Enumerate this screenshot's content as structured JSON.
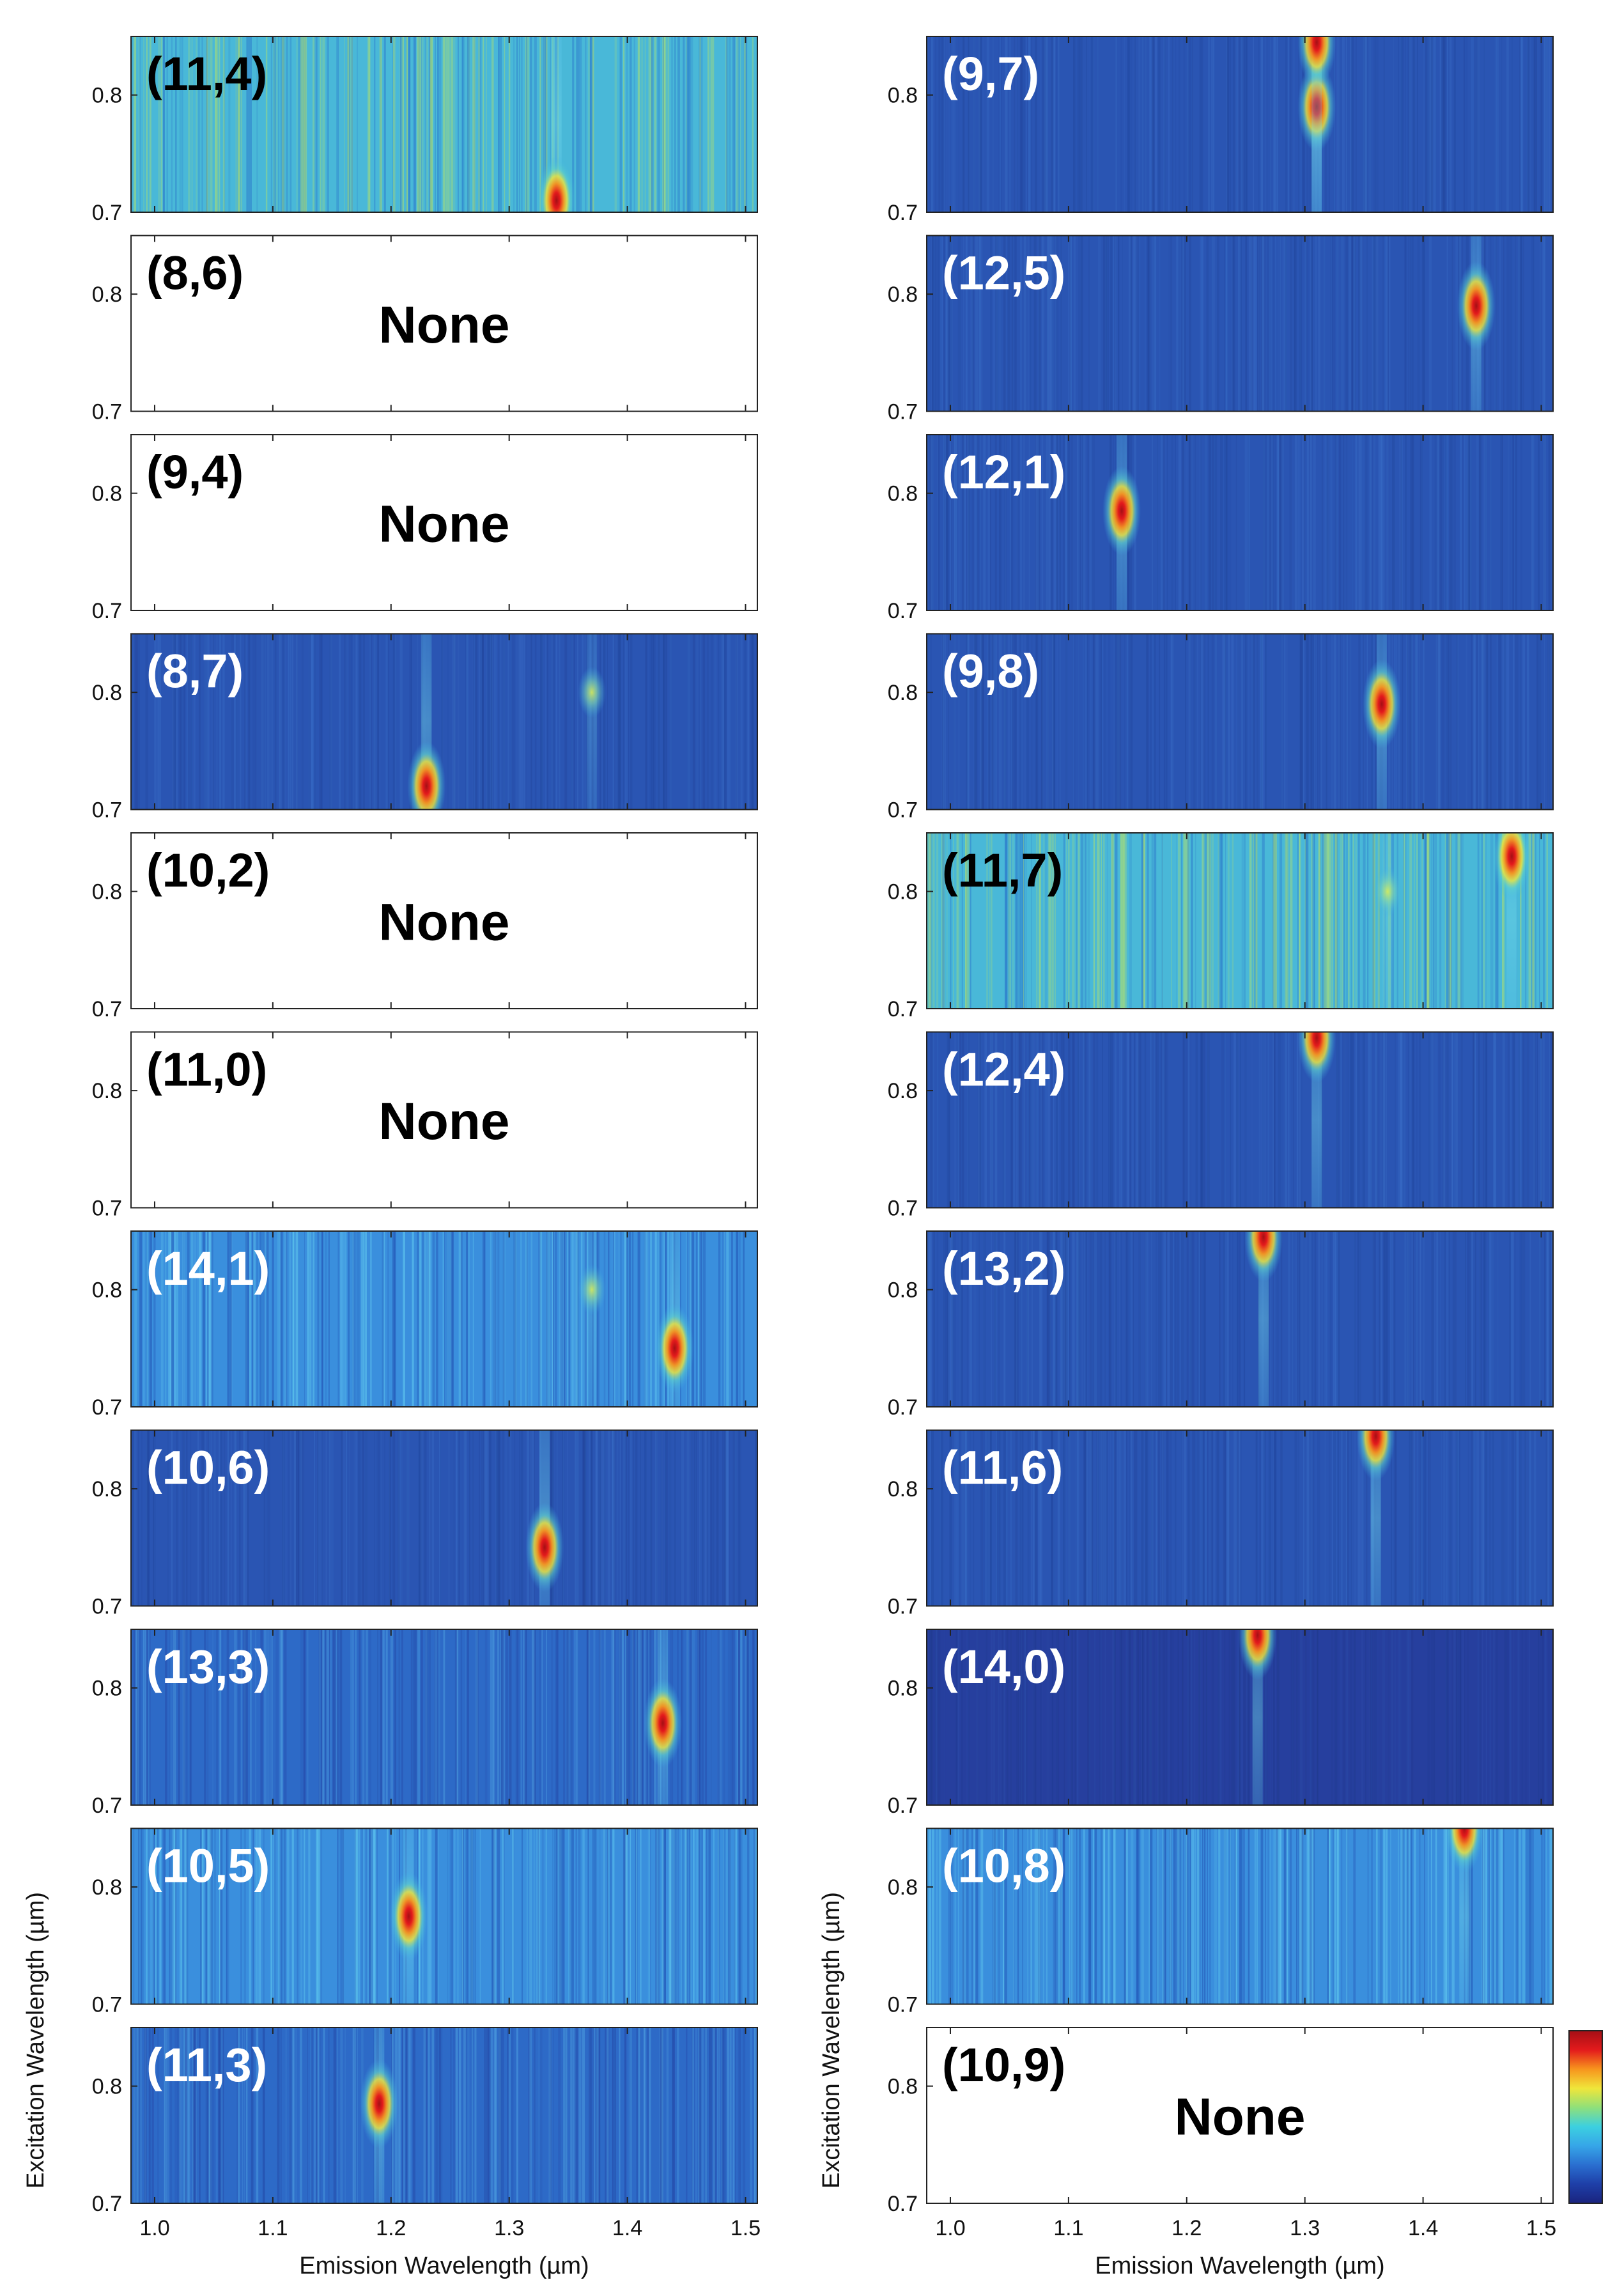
{
  "figure": {
    "x_axis_label": "Emission Wavelength (µm)",
    "y_axis_label": "Excitation Wavelength (µm)",
    "none_text": "None",
    "colorbar_stops": [
      "#1a237e",
      "#1e3fa8",
      "#2a6fd0",
      "#36a6e8",
      "#3cd0e0",
      "#8fe07a",
      "#f0e63a",
      "#f7941d",
      "#e31a1c",
      "#a50f15"
    ]
  },
  "chart_data": {
    "type": "heatmap",
    "x_range": [
      0.98,
      1.51
    ],
    "y_range": [
      0.7,
      0.85
    ],
    "x_ticks": [
      "1.0",
      "1.1",
      "1.2",
      "1.3",
      "1.4",
      "1.5"
    ],
    "x_tick_values": [
      1.0,
      1.1,
      1.2,
      1.3,
      1.4,
      1.5
    ],
    "y_ticks": [
      "0.7",
      "0.8"
    ],
    "y_tick_values": [
      0.7,
      0.8
    ],
    "panels": [
      {
        "label": "(11,4)",
        "column": "left",
        "none": false,
        "bg": "green",
        "text_color": "black",
        "peaks": [
          {
            "em": 1.34,
            "ex": 0.71,
            "strength": 1.0
          }
        ]
      },
      {
        "label": "(9,7)",
        "column": "right",
        "none": false,
        "bg": "dark",
        "text_color": "white",
        "peaks": [
          {
            "em": 1.31,
            "ex": 0.79,
            "strength": 1.0
          },
          {
            "em": 1.31,
            "ex": 0.845,
            "strength": 0.7
          }
        ]
      },
      {
        "label": "(8,6)",
        "column": "left",
        "none": true,
        "text_color": "black",
        "peaks": []
      },
      {
        "label": "(12,5)",
        "column": "right",
        "none": false,
        "bg": "dark",
        "text_color": "white",
        "peaks": [
          {
            "em": 1.445,
            "ex": 0.79,
            "strength": 1.0
          }
        ]
      },
      {
        "label": "(9,4)",
        "column": "left",
        "none": true,
        "text_color": "black",
        "peaks": []
      },
      {
        "label": "(12,1)",
        "column": "right",
        "none": false,
        "bg": "dark",
        "text_color": "white",
        "peaks": [
          {
            "em": 1.145,
            "ex": 0.785,
            "strength": 1.0
          }
        ]
      },
      {
        "label": "(8,7)",
        "column": "left",
        "none": false,
        "bg": "dark",
        "text_color": "white",
        "peaks": [
          {
            "em": 1.23,
            "ex": 0.72,
            "strength": 1.0
          },
          {
            "em": 1.37,
            "ex": 0.8,
            "strength": 0.35
          }
        ]
      },
      {
        "label": "(9,8)",
        "column": "right",
        "none": false,
        "bg": "dark",
        "text_color": "white",
        "peaks": [
          {
            "em": 1.365,
            "ex": 0.79,
            "strength": 1.0
          }
        ]
      },
      {
        "label": "(10,2)",
        "column": "left",
        "none": true,
        "text_color": "black",
        "peaks": []
      },
      {
        "label": "(11,7)",
        "column": "right",
        "none": false,
        "bg": "green",
        "text_color": "black",
        "peaks": [
          {
            "em": 1.475,
            "ex": 0.83,
            "strength": 1.0
          },
          {
            "em": 1.37,
            "ex": 0.8,
            "strength": 0.45
          }
        ]
      },
      {
        "label": "(11,0)",
        "column": "left",
        "none": true,
        "text_color": "black",
        "peaks": []
      },
      {
        "label": "(12,4)",
        "column": "right",
        "none": false,
        "bg": "dark",
        "text_color": "white",
        "peaks": [
          {
            "em": 1.31,
            "ex": 0.845,
            "strength": 1.0
          }
        ]
      },
      {
        "label": "(14,1)",
        "column": "left",
        "none": false,
        "bg": "cyan",
        "text_color": "white",
        "peaks": [
          {
            "em": 1.44,
            "ex": 0.75,
            "strength": 1.0
          },
          {
            "em": 1.37,
            "ex": 0.8,
            "strength": 0.3
          }
        ]
      },
      {
        "label": "(13,2)",
        "column": "right",
        "none": false,
        "bg": "dark",
        "text_color": "white",
        "peaks": [
          {
            "em": 1.265,
            "ex": 0.845,
            "strength": 1.0
          }
        ]
      },
      {
        "label": "(10,6)",
        "column": "left",
        "none": false,
        "bg": "dark",
        "text_color": "white",
        "peaks": [
          {
            "em": 1.33,
            "ex": 0.75,
            "strength": 1.0
          }
        ]
      },
      {
        "label": "(11,6)",
        "column": "right",
        "none": false,
        "bg": "dark",
        "text_color": "white",
        "peaks": [
          {
            "em": 1.36,
            "ex": 0.845,
            "strength": 1.0
          }
        ]
      },
      {
        "label": "(13,3)",
        "column": "left",
        "none": false,
        "bg": "mid",
        "text_color": "white",
        "peaks": [
          {
            "em": 1.43,
            "ex": 0.77,
            "strength": 1.0
          }
        ]
      },
      {
        "label": "(14,0)",
        "column": "right",
        "none": false,
        "bg": "darker",
        "text_color": "white",
        "peaks": [
          {
            "em": 1.26,
            "ex": 0.845,
            "strength": 1.0
          }
        ]
      },
      {
        "label": "(10,5)",
        "column": "left",
        "none": false,
        "bg": "cyan",
        "text_color": "white",
        "peaks": [
          {
            "em": 1.215,
            "ex": 0.775,
            "strength": 1.0
          }
        ]
      },
      {
        "label": "(10,8)",
        "column": "right",
        "none": false,
        "bg": "cyan",
        "text_color": "white",
        "peaks": [
          {
            "em": 1.435,
            "ex": 0.85,
            "strength": 1.0
          }
        ]
      },
      {
        "label": "(11,3)",
        "column": "left",
        "none": false,
        "bg": "mid",
        "text_color": "white",
        "peaks": [
          {
            "em": 1.19,
            "ex": 0.785,
            "strength": 1.0
          }
        ]
      },
      {
        "label": "(10,9)",
        "column": "right",
        "none": true,
        "text_color": "black",
        "peaks": []
      }
    ]
  }
}
